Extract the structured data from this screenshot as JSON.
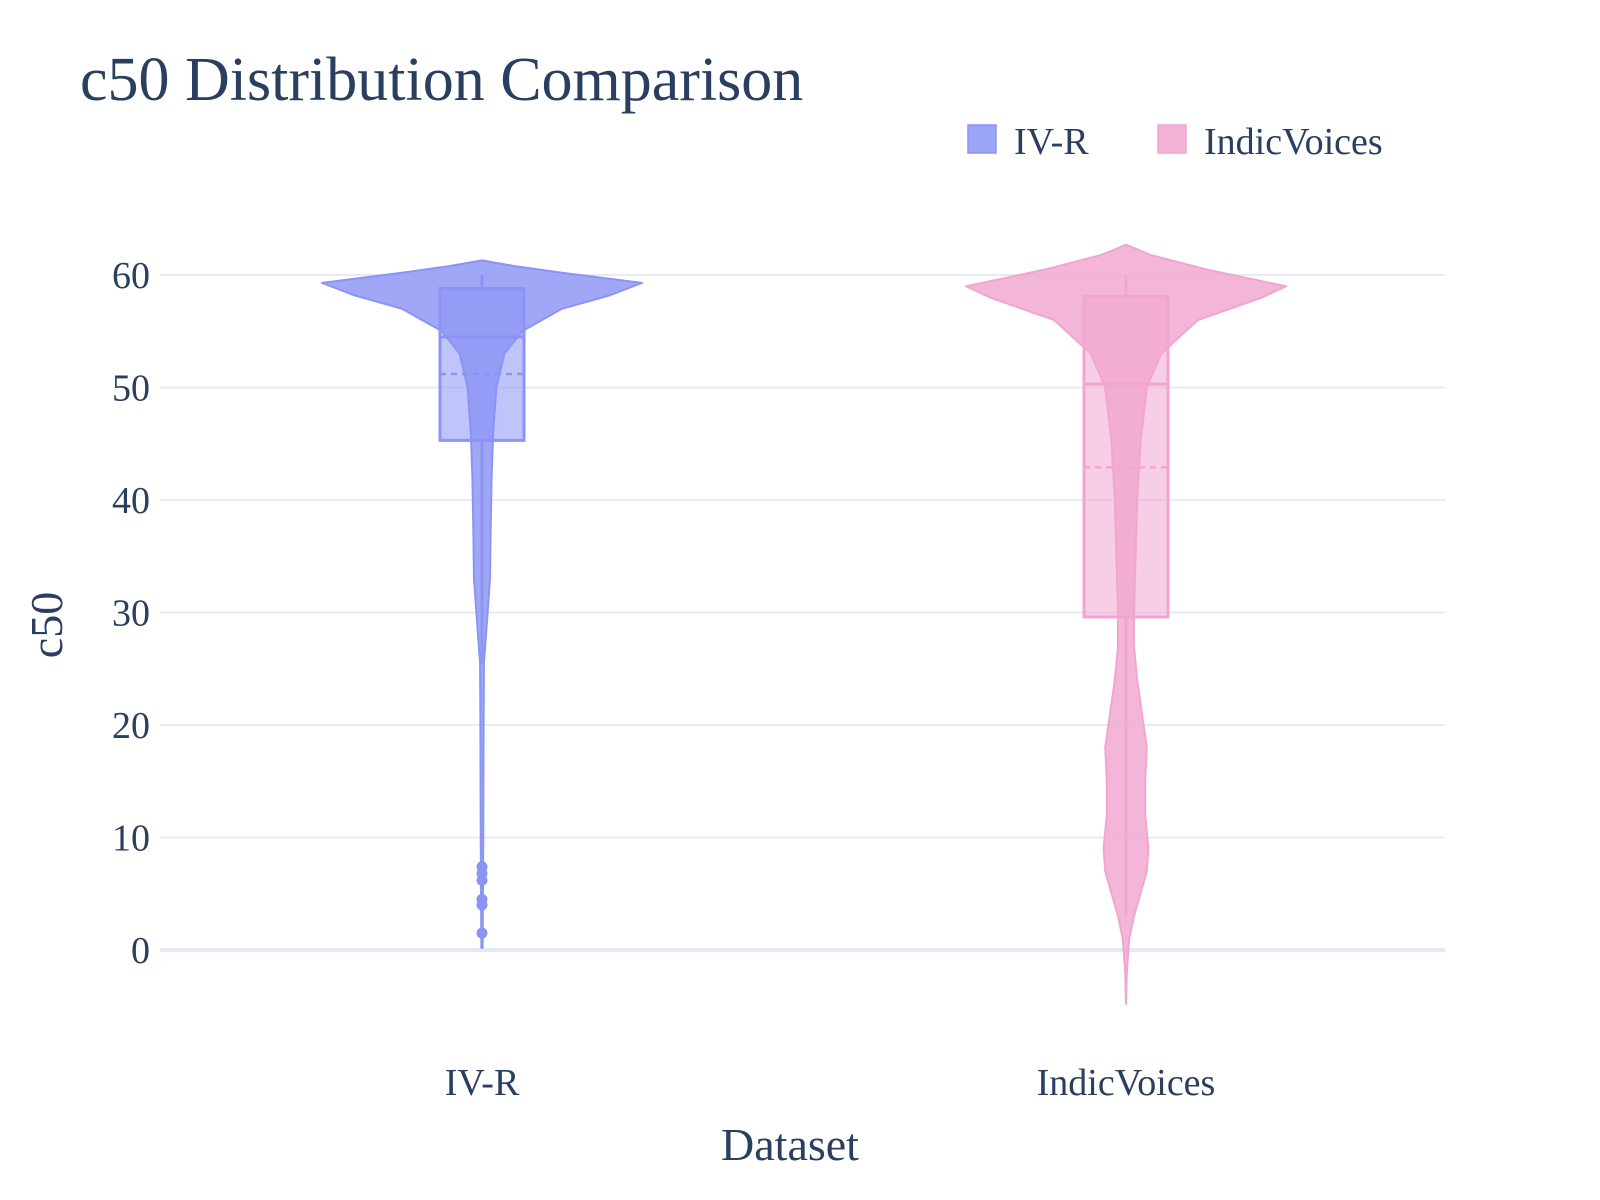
{
  "chart_data": {
    "type": "violin",
    "title": "c50 Distribution Comparison",
    "xlabel": "Dataset",
    "ylabel": "c50",
    "categories": [
      "IV-R",
      "IndicVoices"
    ],
    "ylim": [
      -7.5,
      66
    ],
    "yticks": [
      0,
      10,
      20,
      30,
      40,
      50,
      60
    ],
    "grid": true,
    "legend_position": "top-right",
    "series": [
      {
        "name": "IV-R",
        "category": "IV-R",
        "color": "#8b94f5",
        "box": {
          "q1": 45.3,
          "median": 54.5,
          "q3": 58.8,
          "mean": 51.2,
          "whisker_low": 25.5,
          "whisker_high": 60
        },
        "outliers": [
          1.5,
          4,
          4.5,
          6.2,
          6.8,
          7.4
        ],
        "density": [
          [
            0.2,
            0.004
          ],
          [
            5,
            0.006
          ],
          [
            10,
            0.008
          ],
          [
            20,
            0.01
          ],
          [
            25.5,
            0.012
          ],
          [
            27,
            0.02
          ],
          [
            30,
            0.035
          ],
          [
            33,
            0.05
          ],
          [
            38,
            0.055
          ],
          [
            42,
            0.06
          ],
          [
            46,
            0.07
          ],
          [
            50,
            0.09
          ],
          [
            53,
            0.14
          ],
          [
            55,
            0.25
          ],
          [
            57,
            0.5
          ],
          [
            58.2,
            0.8
          ],
          [
            59.3,
            1.0
          ],
          [
            60.2,
            0.5
          ],
          [
            60.8,
            0.2
          ],
          [
            61.3,
            0.0
          ]
        ]
      },
      {
        "name": "IndicVoices",
        "category": "IndicVoices",
        "color": "#f0a6d0",
        "box": {
          "q1": 29.6,
          "median": 50.3,
          "q3": 58.1,
          "mean": 42.9,
          "whisker_low": 3,
          "whisker_high": 60
        },
        "outliers": [],
        "density": [
          [
            -4.8,
            0.0
          ],
          [
            -2,
            0.005
          ],
          [
            1,
            0.02
          ],
          [
            3,
            0.05
          ],
          [
            5,
            0.09
          ],
          [
            7,
            0.13
          ],
          [
            9,
            0.14
          ],
          [
            12,
            0.12
          ],
          [
            15,
            0.12
          ],
          [
            18,
            0.13
          ],
          [
            21,
            0.1
          ],
          [
            24,
            0.07
          ],
          [
            27,
            0.05
          ],
          [
            30,
            0.05
          ],
          [
            35,
            0.06
          ],
          [
            40,
            0.07
          ],
          [
            45,
            0.09
          ],
          [
            50,
            0.13
          ],
          [
            53,
            0.22
          ],
          [
            56,
            0.45
          ],
          [
            58,
            0.85
          ],
          [
            59,
            1.0
          ],
          [
            60.5,
            0.5
          ],
          [
            61.8,
            0.15
          ],
          [
            62.7,
            0.0
          ]
        ]
      }
    ]
  }
}
